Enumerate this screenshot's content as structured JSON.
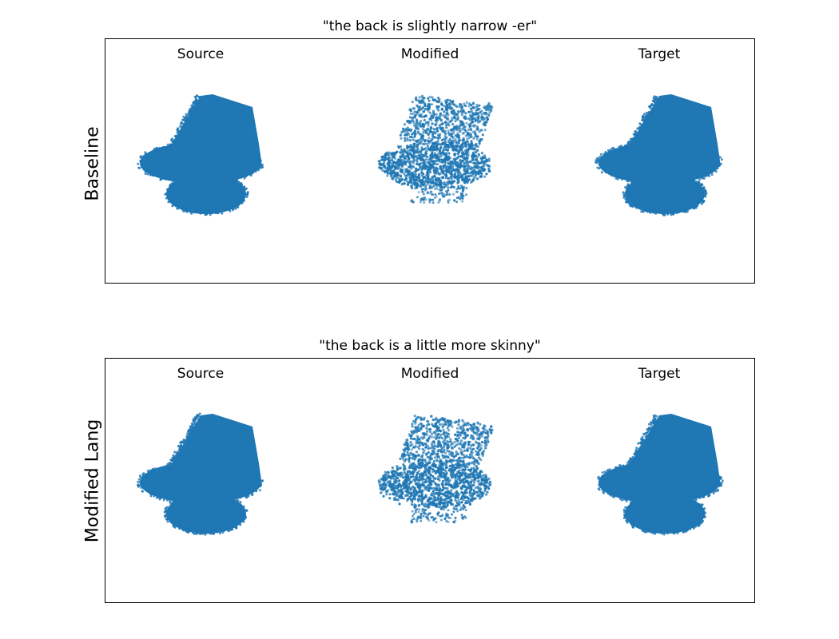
{
  "rows": [
    {
      "row_label": "Baseline",
      "title": "\"the back is slightly narrow -er\"",
      "columns": [
        "Source",
        "Modified",
        "Target"
      ]
    },
    {
      "row_label": "Modified Lang",
      "title": "\"the back is a little more skinny\"",
      "columns": [
        "Source",
        "Modified",
        "Target"
      ]
    }
  ],
  "colors": {
    "points": "#1f77b4",
    "frame": "#000000"
  }
}
